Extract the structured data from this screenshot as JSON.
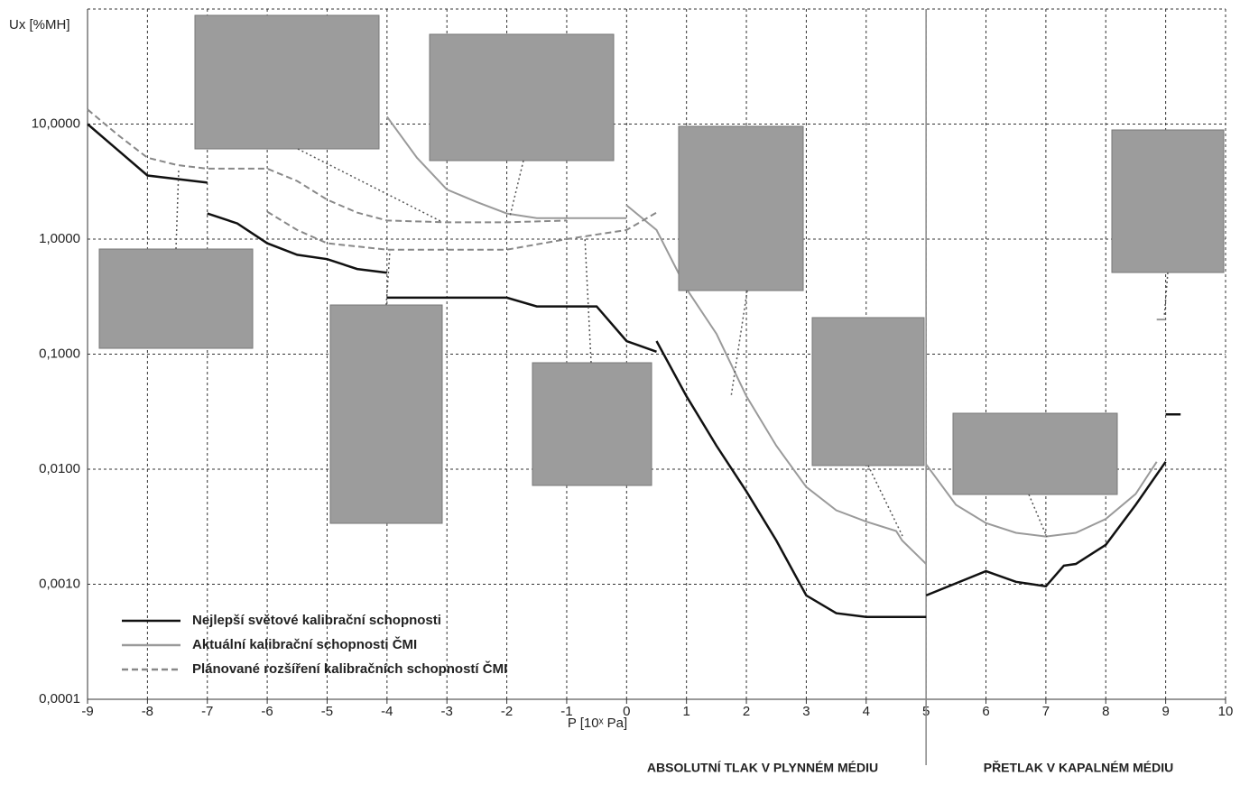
{
  "chart_data": {
    "type": "line",
    "y_label": "Ux [%MH]",
    "x_label": "P [10ˣ Pa]",
    "annotations": [
      "ABSOLUTNÍ TLAK V PLYNNÉM MÉDIU",
      "PŘETLAK V KAPALNÉM MÉDIU"
    ],
    "log_y": true,
    "grid": true,
    "legend": "lower left",
    "divider_x": 5,
    "xlim": [
      -9,
      10
    ],
    "xticks": [
      -9,
      -8,
      -7,
      -6,
      -5,
      -4,
      -3,
      -2,
      -1,
      0,
      1,
      2,
      3,
      4,
      5,
      6,
      7,
      8,
      9,
      10
    ],
    "ylim": [
      0.0001,
      100
    ],
    "yticks": [
      {
        "value": 0.0001,
        "label": "0,0001"
      },
      {
        "value": 0.001,
        "label": "0,0010"
      },
      {
        "value": 0.01,
        "label": "0,0100"
      },
      {
        "value": 0.1,
        "label": "0,1000"
      },
      {
        "value": 1,
        "label": "1,0000"
      },
      {
        "value": 10,
        "label": "10,0000"
      }
    ],
    "series": [
      {
        "name": "Nejlepší světové kalibrační schopnosti",
        "color": "#111111",
        "style": "solid",
        "x": [
          -9,
          -8,
          -7,
          null,
          -7,
          -6.5,
          -6,
          -5.5,
          -5,
          -4.5,
          -4,
          null,
          -4,
          -2,
          -1.5,
          -0.5,
          0,
          0.5,
          null,
          0.5,
          1,
          1.5,
          2,
          2.5,
          3,
          3.5,
          4,
          5,
          null,
          5,
          6,
          6.5,
          7,
          7.3,
          7.5,
          8,
          8.5,
          9,
          null,
          9,
          9.25
        ],
        "values": [
          10,
          3.57,
          3.1,
          null,
          1.67,
          1.37,
          0.92,
          0.73,
          0.67,
          0.55,
          0.51,
          null,
          0.31,
          0.31,
          0.26,
          0.26,
          0.13,
          0.105,
          null,
          0.13,
          0.043,
          0.016,
          0.0064,
          0.0024,
          0.0008,
          0.00056,
          0.00052,
          0.00052,
          null,
          0.0008,
          0.0013,
          0.00105,
          0.00096,
          0.00145,
          0.0015,
          0.0022,
          0.0049,
          0.0116,
          null,
          0.03,
          0.03
        ]
      },
      {
        "name": "Aktuální kalibrační schopnosti ČMI",
        "color": "#9a9a9a",
        "style": "solid",
        "x": [
          -4,
          -3.5,
          -3,
          -2.5,
          -2,
          -1.5,
          0,
          null,
          0,
          0.5,
          1,
          1.5,
          2,
          2.5,
          3,
          3.5,
          4,
          4.5,
          4.6,
          5,
          null,
          5,
          5.5,
          6,
          6.5,
          7,
          7.5,
          8,
          8.5,
          8.85,
          null,
          8.85,
          9
        ],
        "values": [
          11.6,
          5.1,
          2.7,
          2.1,
          1.67,
          1.52,
          1.52,
          null,
          1.97,
          1.2,
          0.37,
          0.15,
          0.043,
          0.016,
          0.007,
          0.0044,
          0.0035,
          0.0029,
          0.0024,
          0.0015,
          null,
          0.011,
          0.0049,
          0.0034,
          0.0028,
          0.0026,
          0.0028,
          0.0037,
          0.0061,
          0.0116,
          null,
          0.2,
          0.2
        ]
      },
      {
        "name": "Plánované rozšíření kalibračních schopností ČMI",
        "color": "#888888",
        "style": "dashed",
        "x": [
          -9,
          -8.5,
          -8,
          -7.5,
          -7,
          -6,
          -5.5,
          -5,
          -4.5,
          -4,
          -3,
          -2,
          -1,
          null,
          -6,
          -5.5,
          -5,
          -4,
          -2,
          -1,
          0,
          0.5
        ],
        "values": [
          13.4,
          8.1,
          5.1,
          4.4,
          4.1,
          4.1,
          3.2,
          2.2,
          1.7,
          1.45,
          1.4,
          1.4,
          1.45,
          null,
          1.73,
          1.2,
          0.92,
          0.81,
          0.81,
          1.0,
          1.2,
          1.7
        ]
      }
    ]
  }
}
